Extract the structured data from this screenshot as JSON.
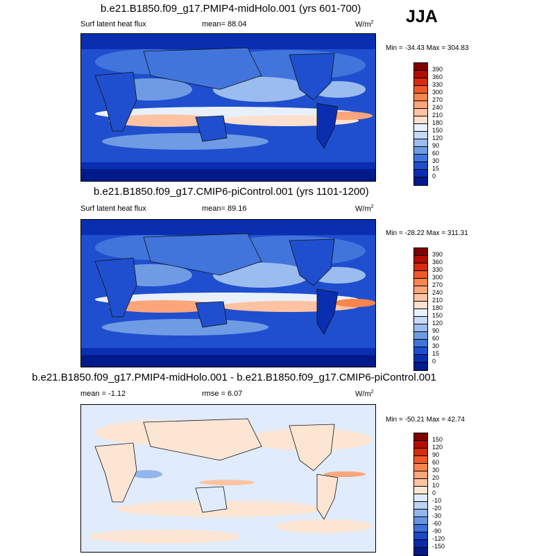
{
  "season": "JJA",
  "panels": [
    {
      "title": "b.e21.B1850.f09_g17.PMIP4-midHolo.001 (yrs 601-700)",
      "left_label": "Surf latent heat flux",
      "center_label": "mean=  88.04",
      "units": "W/m",
      "units_sup": "2",
      "minmax": "Min = -34.43 Max = 304.83",
      "type": "abs"
    },
    {
      "title": "b.e21.B1850.f09_g17.CMIP6-piControl.001 (yrs 1101-1200)",
      "left_label": "Surf latent heat flux",
      "center_label": "mean=  89.16",
      "units": "W/m",
      "units_sup": "2",
      "minmax": "Min = -28.22 Max = 311.31",
      "type": "abs"
    },
    {
      "title": "b.e21.B1850.f09_g17.PMIP4-midHolo.001 - b.e21.B1850.f09_g17.CMIP6-piControl.001",
      "left_label": "mean =  -1.12",
      "center_label": "rmse =  6.07",
      "units": "W/m",
      "units_sup": "2",
      "minmax": "Min = -50.21 Max =  42.74",
      "type": "diff"
    }
  ],
  "colorbars": {
    "abs": {
      "labels": [
        "390",
        "360",
        "330",
        "300",
        "270",
        "240",
        "210",
        "180",
        "150",
        "120",
        "90",
        "60",
        "30",
        "15",
        "0"
      ],
      "colors": [
        "#7f0000",
        "#b30d00",
        "#d62c0a",
        "#ee5a2a",
        "#f7864e",
        "#fba67a",
        "#fdc3a2",
        "#fbe0cf",
        "#e8f0fb",
        "#c6d9f5",
        "#9bbcee",
        "#6f9be5",
        "#4175dc",
        "#1f4fce",
        "#0a2eb0",
        "#001a8a"
      ]
    },
    "diff": {
      "labels": [
        "150",
        "120",
        "90",
        "60",
        "30",
        "20",
        "10",
        "0",
        "-10",
        "-20",
        "-30",
        "-60",
        "-90",
        "-120",
        "-150"
      ],
      "colors": [
        "#7f0000",
        "#b30d00",
        "#d62c0a",
        "#ee5a2a",
        "#f7864e",
        "#fba67a",
        "#fdc3a2",
        "#fde5d4",
        "#e0ecfb",
        "#bcd3f3",
        "#93b4ec",
        "#6a94e3",
        "#3f6fd9",
        "#1c47c8",
        "#0a2aa8",
        "#001a80"
      ]
    }
  }
}
